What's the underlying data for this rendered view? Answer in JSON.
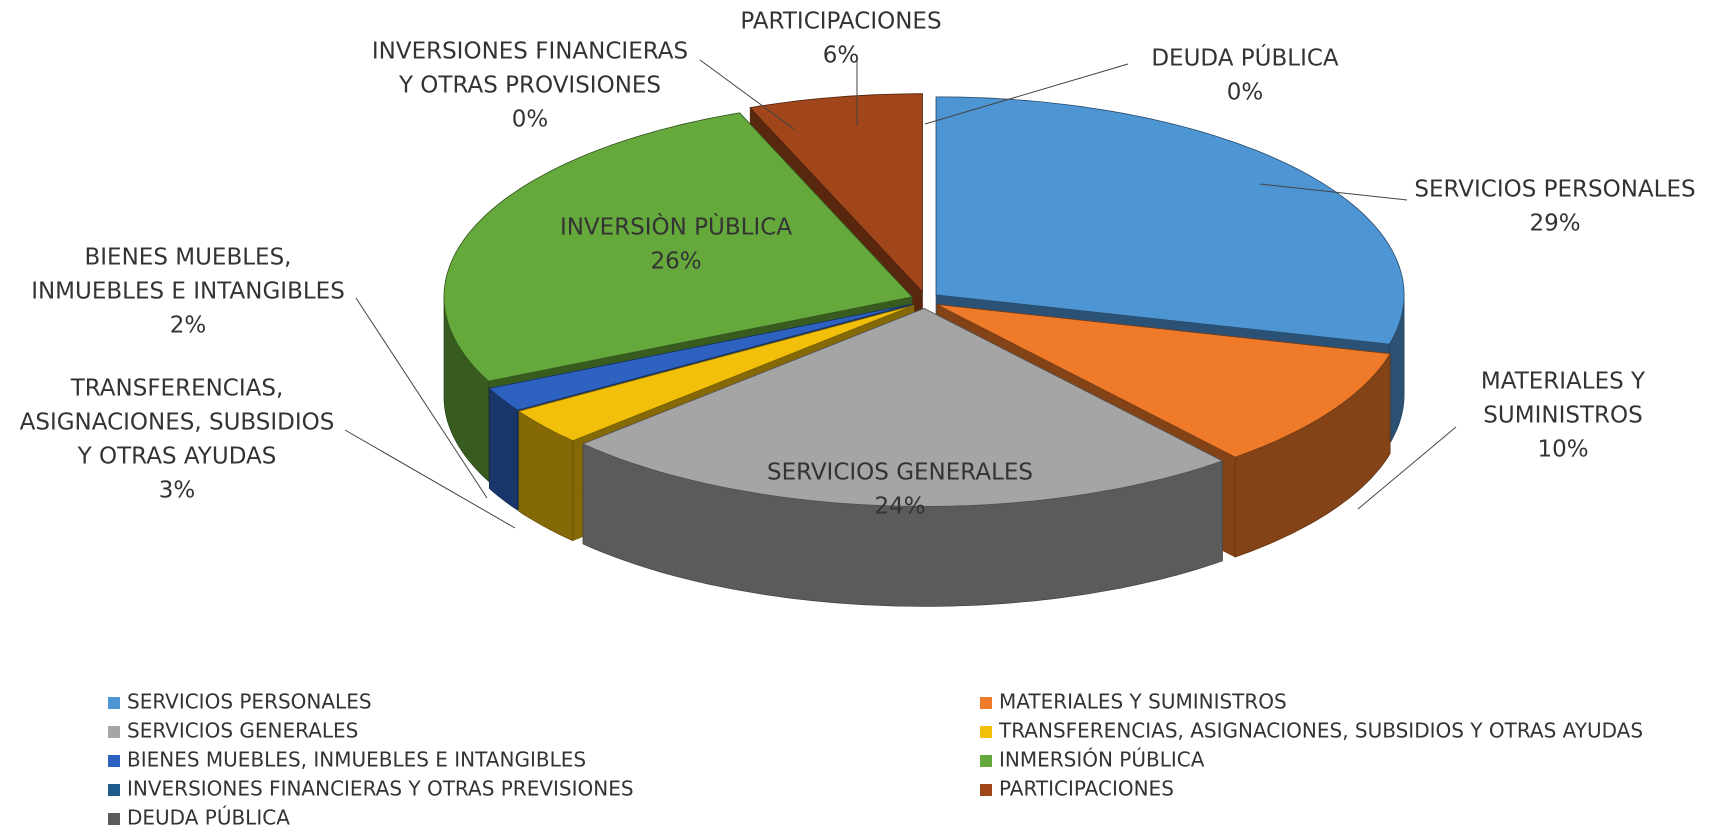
{
  "chart_data": {
    "type": "pie3d",
    "labels": [
      [
        "SERVICIOS PERSONALES"
      ],
      [
        "MATERIALES Y",
        "SUMINISTROS"
      ],
      [
        "SERVICIOS GENERALES"
      ],
      [
        "TRANSFERENCIAS,",
        "ASIGNACIONES, SUBSIDIOS",
        "Y OTRAS AYUDAS"
      ],
      [
        "BIENES MUEBLES,",
        "INMUEBLES E INTANGIBLES"
      ],
      [
        "INVERSIÒN PÙBLICA"
      ],
      [
        "INVERSIONES FINANCIERAS",
        "Y OTRAS PROVISIONES"
      ],
      [
        "PARTICIPACIONES"
      ],
      [
        "DEUDA PÚBLICA"
      ]
    ],
    "series": [
      {
        "name": "SERVICIOS PERSONALES",
        "color": "#4e95d4"
      },
      {
        "name": "MATERIALES Y SUMINISTROS",
        "color": "#ef7a2a"
      },
      {
        "name": "SERVICIOS GENERALES",
        "color": "#a5a5a5"
      },
      {
        "name": "TRANSFERENCIAS, ASIGNACIONES, SUBSIDIOS Y OTRAS AYUDAS",
        "color": "#f2bf0a"
      },
      {
        "name": "BIENES MUEBLES, INMUEBLES E INTANGIBLES",
        "color": "#2e62c0"
      },
      {
        "name": "INMERSIÓN PÚBLICA",
        "color": "#65a83b"
      },
      {
        "name": "INVERSIONES FINANCIERAS Y OTRAS PREVISIONES",
        "color": "#1f5c8e"
      },
      {
        "name": "PARTICIPACIONES",
        "color": "#a0461a"
      },
      {
        "name": "DEUDA PÚBLICA",
        "color": "#5b5b5b"
      }
    ],
    "values": [
      29,
      10,
      24,
      3,
      2,
      26,
      0,
      6,
      0
    ],
    "value_labels": [
      "29%",
      "10%",
      "24%",
      "3%",
      "2%",
      "26%",
      "0%",
      "6%",
      "0%"
    ],
    "legend": "bottom"
  }
}
